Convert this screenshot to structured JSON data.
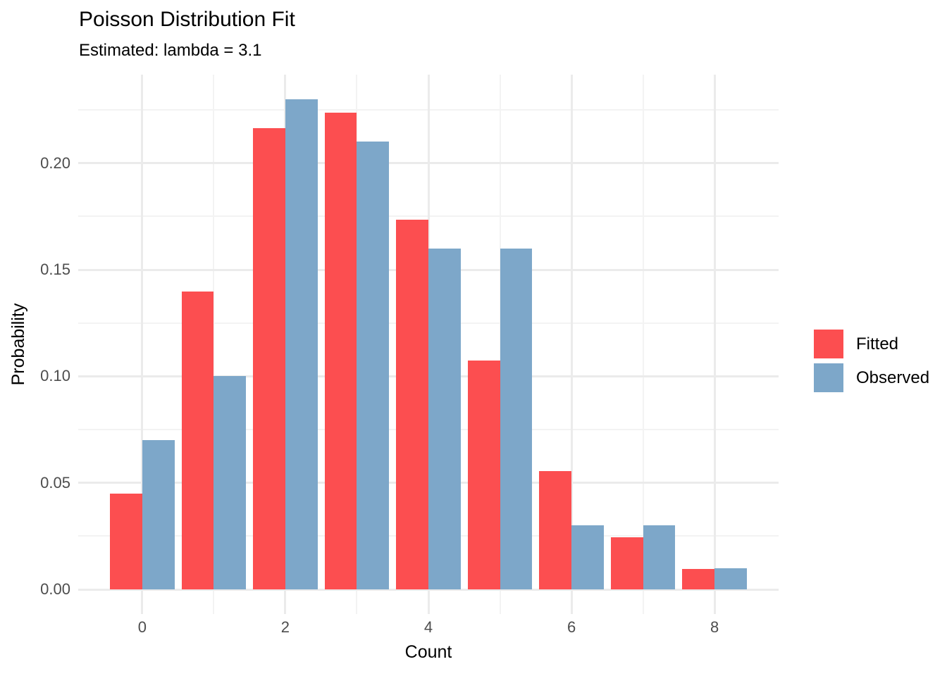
{
  "chart_data": {
    "type": "bar",
    "title": "Poisson Distribution Fit",
    "subtitle": "Estimated: lambda = 3.1",
    "xlabel": "Count",
    "ylabel": "Probability",
    "categories": [
      0,
      1,
      2,
      3,
      4,
      5,
      6,
      7,
      8
    ],
    "series": [
      {
        "name": "Fitted",
        "color": "#FC4E50",
        "values": [
          0.045,
          0.1397,
          0.2165,
          0.2237,
          0.1734,
          0.1075,
          0.0555,
          0.0246,
          0.0095
        ]
      },
      {
        "name": "Observed",
        "color": "#7DA7C9",
        "values": [
          0.07,
          0.1,
          0.23,
          0.21,
          0.16,
          0.16,
          0.03,
          0.03,
          0.01
        ]
      }
    ],
    "bar_width": 0.45,
    "dodge": true,
    "x_major_ticks": [
      0,
      2,
      4,
      6,
      8
    ],
    "x_tick_labels": [
      "0",
      "2",
      "4",
      "6",
      "8"
    ],
    "x_minor_ticks": [
      1,
      3,
      5,
      7
    ],
    "y_major_ticks": [
      0.0,
      0.05,
      0.1,
      0.15,
      0.2
    ],
    "y_tick_labels": [
      "0.00",
      "0.05",
      "0.10",
      "0.15",
      "0.20"
    ],
    "y_minor_ticks": [
      0.025,
      0.075,
      0.125,
      0.175,
      0.225
    ],
    "xlim": [
      -0.895,
      8.895
    ],
    "ylim": [
      -0.0115,
      0.2415
    ],
    "grid": "major+minor horizontal and vertical, no axis lines, white background",
    "legend_position": "right-center",
    "colors": {
      "grid_major": "#EBEBEB",
      "grid_minor": "#F3F3F3",
      "tick_label": "#4D4D4D",
      "text": "#000000",
      "background": "#FFFFFF"
    }
  }
}
